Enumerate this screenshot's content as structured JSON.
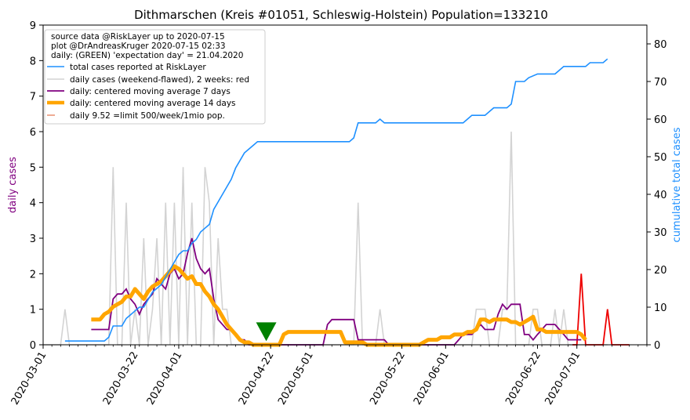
{
  "chart_data": {
    "type": "line",
    "title": "Dithmarschen (Kreis #01051, Schleswig-Holstein) Population=133210",
    "ylabel_left": "daily cases",
    "ylabel_right": "cumulative total cases",
    "ylim_left": [
      0,
      9
    ],
    "ylim_right": [
      0,
      85
    ],
    "yticks_left": [
      "0",
      "1",
      "2",
      "3",
      "4",
      "5",
      "6",
      "7",
      "8",
      "9"
    ],
    "yticks_right": [
      "0",
      "10",
      "20",
      "30",
      "40",
      "50",
      "60",
      "70",
      "80"
    ],
    "x_range_days": [
      0,
      138
    ],
    "xticks": [
      {
        "day": 0,
        "label": "2020-03-01"
      },
      {
        "day": 21,
        "label": "2020-03-22"
      },
      {
        "day": 31,
        "label": "2020-04-01"
      },
      {
        "day": 52,
        "label": "2020-04-22"
      },
      {
        "day": 61,
        "label": "2020-05-01"
      },
      {
        "day": 82,
        "label": "2020-05-22"
      },
      {
        "day": 92,
        "label": "2020-06-01"
      },
      {
        "day": 113,
        "label": "2020-06-22"
      },
      {
        "day": 122,
        "label": "2020-07-01"
      }
    ],
    "legend_header": [
      "source data @RiskLayer up to 2020-07-15",
      "plot @DrAndreasKruger 2020-07-15 02:33",
      "daily: (GREEN) 'expectation day' = 21.04.2020"
    ],
    "series": [
      {
        "name": "total cases reported at RiskLayer",
        "axis": "right",
        "color": "#1e90ff",
        "step": true,
        "points": [
          [
            5,
            1
          ],
          [
            8,
            1
          ],
          [
            9,
            1
          ],
          [
            10,
            1
          ],
          [
            14,
            1
          ],
          [
            15,
            2
          ],
          [
            16,
            5
          ],
          [
            18,
            5
          ],
          [
            19,
            7
          ],
          [
            20,
            8
          ],
          [
            21,
            9
          ],
          [
            22,
            10
          ],
          [
            23,
            10
          ],
          [
            24,
            12
          ],
          [
            25,
            14
          ],
          [
            26,
            15
          ],
          [
            27,
            16
          ],
          [
            28,
            18
          ],
          [
            29,
            20
          ],
          [
            30,
            22
          ],
          [
            31,
            24
          ],
          [
            32,
            25
          ],
          [
            33,
            25
          ],
          [
            34,
            27
          ],
          [
            35,
            28
          ],
          [
            36,
            30
          ],
          [
            37,
            31
          ],
          [
            38,
            32
          ],
          [
            39,
            36
          ],
          [
            40,
            38
          ],
          [
            41,
            40
          ],
          [
            42,
            42
          ],
          [
            43,
            44
          ],
          [
            44,
            47
          ],
          [
            45,
            49
          ],
          [
            46,
            51
          ],
          [
            47,
            52
          ],
          [
            48,
            53
          ],
          [
            49,
            54
          ],
          [
            50,
            54
          ],
          [
            51,
            54
          ],
          [
            52,
            54
          ],
          [
            58,
            54
          ],
          [
            70,
            54
          ],
          [
            71,
            55
          ],
          [
            72,
            59
          ],
          [
            76,
            59
          ],
          [
            77,
            60
          ],
          [
            78,
            59
          ],
          [
            96,
            59
          ],
          [
            97,
            60
          ],
          [
            98,
            61
          ],
          [
            101,
            61
          ],
          [
            102,
            62
          ],
          [
            103,
            63
          ],
          [
            106,
            63
          ],
          [
            107,
            64
          ],
          [
            108,
            70
          ],
          [
            110,
            70
          ],
          [
            111,
            71
          ],
          [
            113,
            72
          ],
          [
            117,
            72
          ],
          [
            118,
            73
          ],
          [
            119,
            74
          ],
          [
            124,
            74
          ],
          [
            125,
            75
          ],
          [
            128,
            75
          ],
          [
            129,
            76
          ]
        ]
      },
      {
        "name": "daily cases (weekend-flawed), 2 weeks: red",
        "axis": "left",
        "color": "#d3d3d3",
        "values_by_day": [
          0,
          0,
          0,
          0,
          0,
          1,
          0,
          0,
          0,
          0,
          0,
          0,
          0,
          0,
          0,
          0,
          5,
          0,
          0,
          4,
          0,
          1,
          0,
          3,
          0,
          1,
          3,
          0,
          4,
          0,
          4,
          0,
          5,
          0,
          4,
          0,
          0,
          5,
          4,
          0,
          3,
          1,
          1,
          0,
          0,
          0,
          0,
          0,
          0,
          0,
          0,
          0,
          0,
          0,
          0,
          0,
          0,
          0,
          0,
          0,
          0,
          0,
          0,
          0,
          0,
          0,
          0,
          0,
          0,
          0,
          0,
          0,
          4,
          0,
          0,
          0,
          0,
          1,
          0,
          0,
          0,
          0,
          0,
          0,
          0,
          0,
          0,
          0,
          0,
          0,
          0,
          0,
          0,
          0,
          0,
          0,
          0,
          0,
          0,
          1,
          1,
          1,
          0,
          0,
          0,
          1,
          1,
          6,
          0,
          0,
          0,
          0,
          1,
          1,
          0,
          0,
          0,
          1,
          0,
          1,
          0,
          0,
          0,
          0,
          0,
          0,
          0,
          0,
          0,
          0
        ]
      },
      {
        "name": "daily: centered moving average 7 days",
        "axis": "left",
        "color": "#800080",
        "values_by_day": [
          null,
          null,
          null,
          null,
          null,
          null,
          null,
          null,
          null,
          null,
          null,
          0.43,
          0.43,
          0.43,
          0.43,
          0.43,
          1.29,
          1.43,
          1.43,
          1.57,
          1.29,
          1.14,
          0.86,
          1.14,
          1.29,
          1.43,
          1.86,
          1.71,
          1.57,
          2.0,
          2.14,
          1.86,
          2.0,
          2.57,
          3.0,
          2.43,
          2.14,
          2.0,
          2.14,
          1.29,
          0.71,
          0.57,
          0.43,
          0.43,
          0.29,
          0.14,
          0.14,
          0.0,
          0.0,
          0.0,
          0.0,
          0.0,
          0.0,
          0.0,
          0.0,
          0.0,
          0.0,
          0.0,
          0.0,
          0.0,
          0.0,
          0.0,
          0.0,
          0.0,
          0.0,
          0.57,
          0.71,
          0.71,
          0.71,
          0.71,
          0.71,
          0.71,
          0.14,
          0.14,
          0.14,
          0.14,
          0.14,
          0.14,
          0.14,
          0.0,
          0.0,
          0.0,
          0.0,
          0.0,
          0.0,
          0.0,
          0.0,
          0.0,
          0.0,
          0.0,
          0.0,
          0.0,
          0.0,
          0.0,
          0.0,
          0.14,
          0.29,
          0.29,
          0.29,
          0.43,
          0.57,
          0.43,
          0.43,
          0.43,
          0.86,
          1.14,
          1.0,
          1.14,
          1.14,
          1.14,
          0.29,
          0.29,
          0.14,
          0.29,
          0.43,
          0.57,
          0.57,
          0.57,
          0.43,
          0.29,
          0.14,
          0.14,
          0.14,
          0.14,
          null,
          null,
          null,
          null
        ]
      },
      {
        "name": "daily: centered moving average 14 days",
        "axis": "left",
        "color": "#ffa500",
        "values_by_day": [
          null,
          null,
          null,
          null,
          null,
          null,
          null,
          null,
          null,
          null,
          null,
          0.71,
          0.71,
          0.71,
          0.86,
          0.93,
          1.07,
          1.14,
          1.21,
          1.36,
          1.36,
          1.57,
          1.43,
          1.29,
          1.5,
          1.64,
          1.71,
          1.79,
          1.93,
          2.07,
          2.21,
          2.14,
          2.0,
          1.86,
          1.93,
          1.71,
          1.71,
          1.5,
          1.36,
          1.14,
          1.0,
          0.79,
          0.57,
          0.43,
          0.29,
          0.14,
          0.07,
          0.07,
          0.0,
          0.0,
          0.0,
          0.0,
          0.0,
          0.0,
          0.0,
          0.29,
          0.36,
          0.36,
          0.36,
          0.36,
          0.36,
          0.36,
          0.36,
          0.36,
          0.36,
          0.36,
          0.36,
          0.36,
          0.36,
          0.07,
          0.07,
          0.07,
          0.07,
          0.07,
          0.0,
          0.0,
          0.0,
          0.0,
          0.0,
          0.0,
          0.0,
          0.0,
          0.0,
          0.0,
          0.0,
          0.0,
          0.0,
          0.07,
          0.14,
          0.14,
          0.14,
          0.21,
          0.21,
          0.21,
          0.29,
          0.29,
          0.29,
          0.36,
          0.36,
          0.43,
          0.71,
          0.71,
          0.64,
          0.71,
          0.71,
          0.71,
          0.71,
          0.64,
          0.64,
          0.57,
          0.64,
          0.71,
          0.79,
          0.43,
          0.43,
          0.36,
          0.36,
          0.36,
          0.36,
          0.36,
          0.36,
          0.36,
          0.36,
          0.29,
          0.14,
          null,
          null,
          null,
          null
        ]
      },
      {
        "name": "daily 9.52 =limit 500/week/1mio pop.",
        "axis": "left",
        "color": "#e9967a",
        "points": []
      },
      {
        "name": "red",
        "axis": "left",
        "color": "#ee0000",
        "points": [
          [
            121,
            0
          ],
          [
            122,
            0
          ],
          [
            123,
            2
          ],
          [
            124,
            0
          ],
          [
            125,
            0
          ],
          [
            126,
            0
          ],
          [
            127,
            0
          ],
          [
            128,
            0
          ],
          [
            129,
            1
          ],
          [
            130,
            0
          ],
          [
            131,
            0
          ],
          [
            132,
            0
          ],
          [
            133,
            0
          ],
          [
            134,
            0
          ]
        ]
      }
    ],
    "expectation_day_marker": {
      "day": 51,
      "value": 0.3,
      "color": "#008000"
    }
  }
}
